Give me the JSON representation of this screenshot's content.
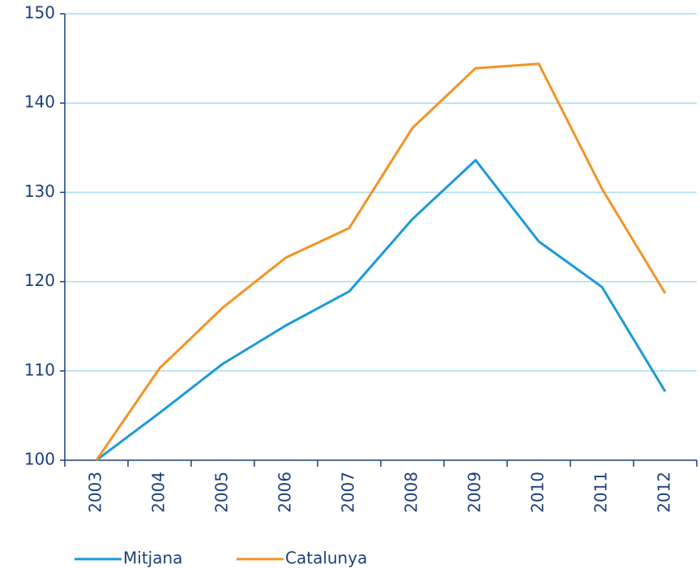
{
  "chart_data": {
    "type": "line",
    "categories": [
      "2003",
      "2004",
      "2005",
      "2006",
      "2007",
      "2008",
      "2009",
      "2010",
      "2011",
      "2012"
    ],
    "series": [
      {
        "name": "Mitjana",
        "color": "#1a9ad9",
        "values": [
          100,
          105.3,
          110.8,
          115.1,
          118.9,
          127,
          133.6,
          124.5,
          119.4,
          107.7
        ]
      },
      {
        "name": "Catalunya",
        "color": "#f39325",
        "values": [
          100,
          110.3,
          117.1,
          122.7,
          126,
          137.2,
          143.9,
          144.4,
          130.4,
          118.7
        ]
      }
    ],
    "ylim": [
      100,
      150
    ],
    "yticks": [
      100,
      110,
      120,
      130,
      140,
      150
    ],
    "grid": true,
    "legend": "bottom"
  }
}
